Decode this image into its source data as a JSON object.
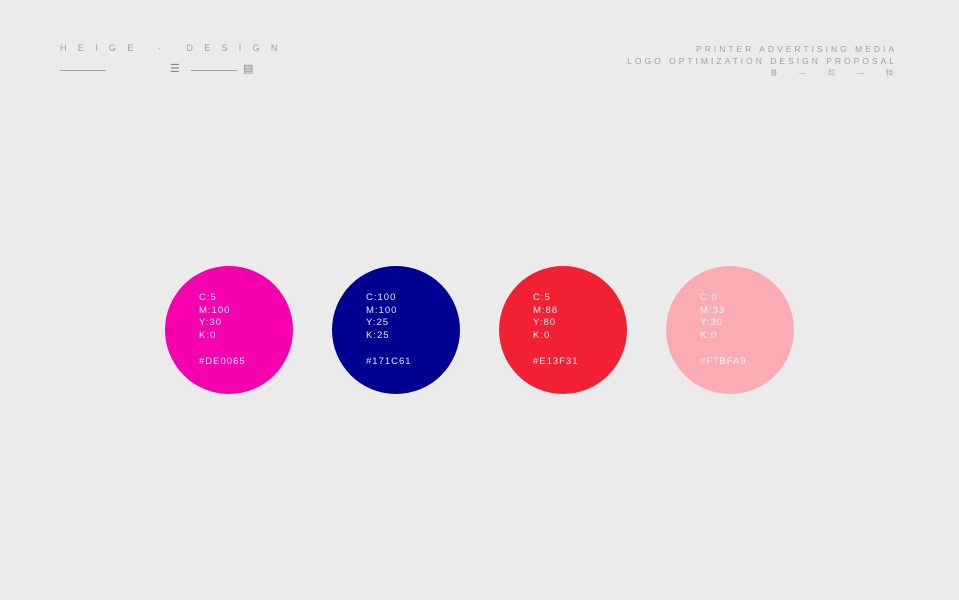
{
  "header": {
    "brand": "HEIGE · DESIGN",
    "right_line1": "PRINTER ADVERTISING MEDIA",
    "right_line2": "LOGO OPTIMIZATION DESIGN PROPOSAL",
    "right_line3": "普 — 印 — 特"
  },
  "swatches": [
    {
      "c": "C:5",
      "m": "M:100",
      "y": "Y:30",
      "k": "K:0",
      "hex": "#DE0065",
      "color": "#f400ae"
    },
    {
      "c": "C:100",
      "m": "M:100",
      "y": "Y:25",
      "k": "K:25",
      "hex": "#171C61",
      "color": "#000090"
    },
    {
      "c": "C:5",
      "m": "M:88",
      "y": "Y:80",
      "k": "K:0",
      "hex": "#E13F31",
      "color": "#f22033"
    },
    {
      "c": "C:0",
      "m": "M:33",
      "y": "Y:30",
      "k": "K:0",
      "hex": "#F7BFA9",
      "color": "#fbabb3"
    }
  ]
}
